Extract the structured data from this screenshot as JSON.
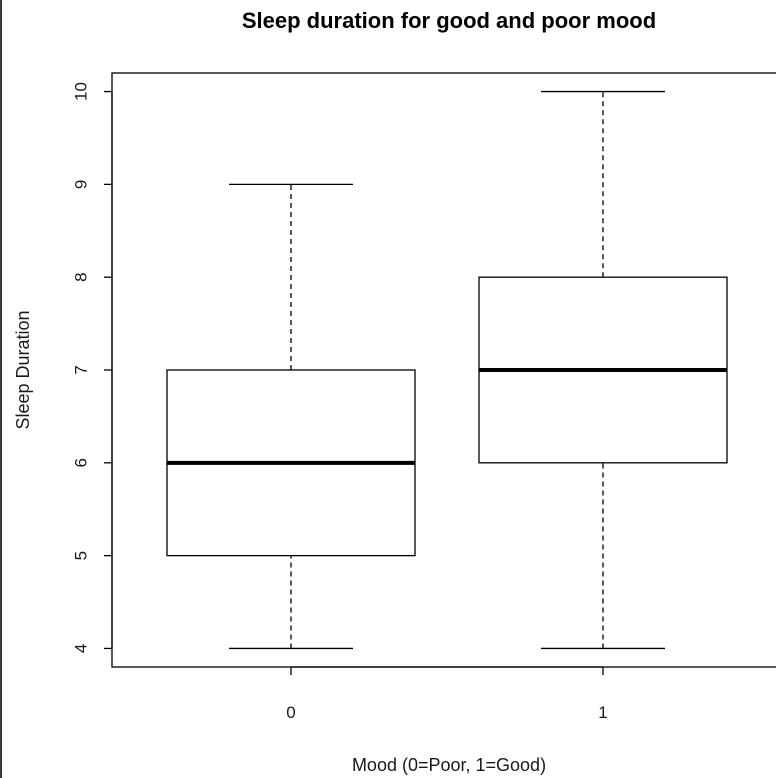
{
  "chart_data": {
    "type": "boxplot",
    "title": "Sleep duration for good and poor mood",
    "xlabel": "Mood (0=Poor, 1=Good)",
    "ylabel": "Sleep Duration",
    "categories": [
      "0",
      "1"
    ],
    "ylim": [
      3.8,
      10.2
    ],
    "yticks": [
      "4",
      "5",
      "6",
      "7",
      "8",
      "9",
      "10"
    ],
    "boxes": [
      {
        "category": "0",
        "min": 4,
        "q1": 5,
        "median": 6,
        "q3": 7,
        "max": 9
      },
      {
        "category": "1",
        "min": 4,
        "q1": 6,
        "median": 7,
        "q3": 8,
        "max": 10
      }
    ],
    "grid": false,
    "colors": {
      "box_fill": "#ffffff",
      "stroke": "#000000"
    }
  }
}
